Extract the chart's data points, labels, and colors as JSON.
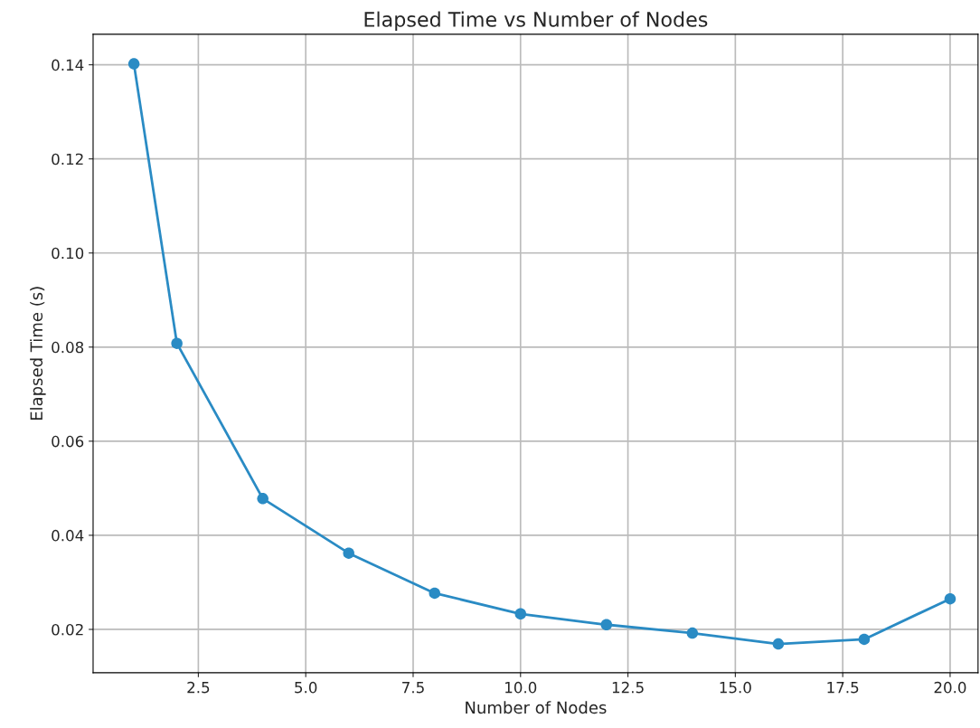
{
  "chart_data": {
    "type": "line",
    "title": "Elapsed Time vs Number of Nodes",
    "xlabel": "Number of Nodes",
    "ylabel": "Elapsed Time (s)",
    "x": [
      1,
      2,
      4,
      6,
      8,
      10,
      12,
      14,
      16,
      18,
      20
    ],
    "series": [
      {
        "color": "#2a8bc4",
        "values": [
          0.1402,
          0.0808,
          0.0478,
          0.0362,
          0.0277,
          0.0233,
          0.021,
          0.0192,
          0.0169,
          0.0179,
          0.0265
        ]
      }
    ],
    "xlim": [
      0.05,
      20.65
    ],
    "ylim": [
      0.0108,
      0.1465
    ],
    "xticks": [
      {
        "value": 2.5,
        "label": "2.5"
      },
      {
        "value": 5,
        "label": "5.0"
      },
      {
        "value": 7.5,
        "label": "7.5"
      },
      {
        "value": 10,
        "label": "10.0"
      },
      {
        "value": 12.5,
        "label": "12.5"
      },
      {
        "value": 15,
        "label": "15.0"
      },
      {
        "value": 17.5,
        "label": "17.5"
      },
      {
        "value": 20,
        "label": "20.0"
      }
    ],
    "yticks": [
      {
        "value": 0.02,
        "label": "0.02"
      },
      {
        "value": 0.04,
        "label": "0.04"
      },
      {
        "value": 0.06,
        "label": "0.06"
      },
      {
        "value": 0.08,
        "label": "0.08"
      },
      {
        "value": 0.1,
        "label": "0.10"
      },
      {
        "value": 0.12,
        "label": "0.12"
      },
      {
        "value": 0.14,
        "label": "0.14"
      }
    ],
    "grid": true,
    "marker": "circle",
    "line_style": "solid"
  }
}
